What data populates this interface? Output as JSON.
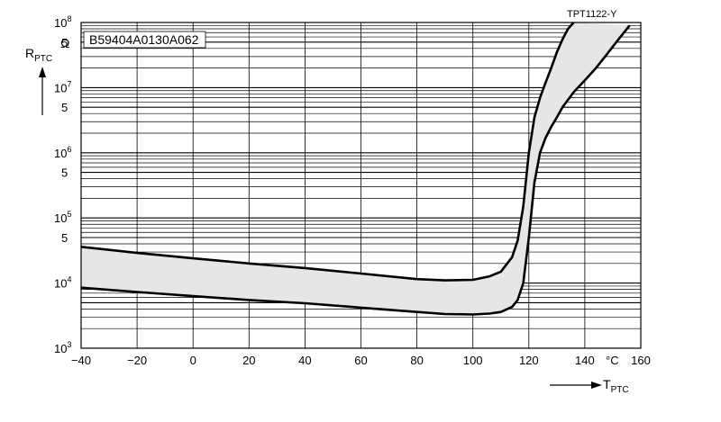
{
  "chart_data": {
    "type": "area",
    "reference_id": "TPT1122-Y",
    "part_number": "B59404A0130A062",
    "x_axis": {
      "name": "T",
      "subscript": "PTC",
      "unit": "°C",
      "range": [
        -40,
        160
      ],
      "ticks": [
        "−40",
        "−20",
        "0",
        "20",
        "40",
        "60",
        "80",
        "100",
        "120",
        "140",
        "160"
      ]
    },
    "y_axis": {
      "name": "R",
      "subscript": "PTC",
      "unit": "Ω",
      "scale": "log",
      "range": [
        1000,
        100000000
      ],
      "decade_bases": [
        "10",
        "10",
        "10",
        "10",
        "10",
        "10"
      ],
      "decade_exponents": [
        "3",
        "4",
        "5",
        "6",
        "7",
        "8"
      ],
      "half_decade_labels": [
        "5",
        "5",
        "5",
        "5"
      ]
    },
    "grid": true,
    "series": [
      {
        "role": "upper-limit",
        "x": [
          -40,
          -20,
          0,
          20,
          40,
          60,
          80,
          90,
          100,
          106,
          110,
          114,
          116,
          118,
          120,
          122,
          124,
          126,
          128,
          130,
          132,
          134,
          136
        ],
        "y": [
          36000,
          29000,
          24000,
          20000,
          17000,
          14000,
          11500,
          11000,
          11200,
          12700,
          15000,
          25000,
          45000,
          150000,
          1000000,
          3500000,
          7000000,
          12000000,
          20000000,
          35000000,
          55000000,
          80000000,
          100000000
        ]
      },
      {
        "role": "lower-limit",
        "x": [
          -40,
          -20,
          0,
          20,
          40,
          60,
          80,
          90,
          100,
          106,
          110,
          114,
          116,
          118,
          120,
          122,
          124,
          126,
          128,
          130,
          132,
          134,
          136,
          138,
          140,
          144,
          148,
          152,
          156
        ],
        "y": [
          8500,
          7300,
          6300,
          5500,
          4900,
          4200,
          3600,
          3350,
          3300,
          3400,
          3600,
          4300,
          5500,
          10000,
          50000,
          350000,
          1000000,
          1700000,
          2500000,
          3500000,
          5000000,
          6500000,
          8500000,
          10500000,
          13000000,
          20000000,
          33000000,
          55000000,
          90000000
        ]
      }
    ]
  }
}
